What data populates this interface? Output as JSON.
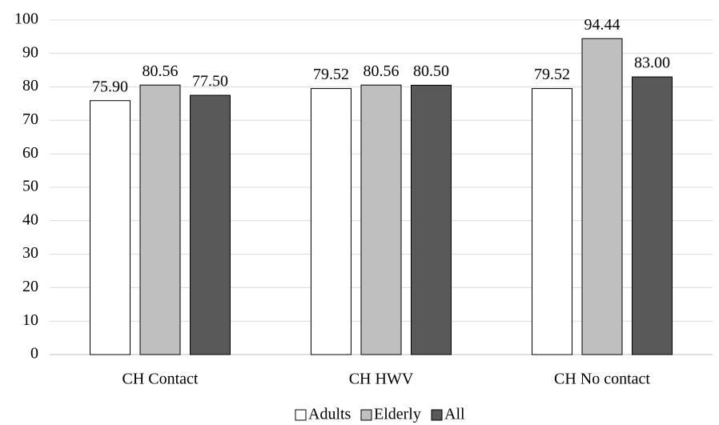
{
  "chart_data": {
    "type": "bar",
    "categories": [
      "CH Contact",
      "CH HWV",
      "CH No contact"
    ],
    "series": [
      {
        "name": "Adults",
        "color": "#ffffff",
        "values": [
          75.9,
          79.52,
          79.52
        ],
        "value_labels": [
          "75.90",
          "79.52",
          "79.52"
        ]
      },
      {
        "name": "Elderly",
        "color": "#bfbfbf",
        "values": [
          80.56,
          80.56,
          94.44
        ],
        "value_labels": [
          "80.56",
          "80.56",
          "94.44"
        ]
      },
      {
        "name": "All",
        "color": "#595959",
        "values": [
          77.5,
          80.5,
          83.0
        ],
        "value_labels": [
          "77.50",
          "80.50",
          "83.00"
        ]
      }
    ],
    "ylim": [
      0,
      100
    ],
    "yticks": [
      0,
      10,
      20,
      30,
      40,
      50,
      60,
      70,
      80,
      90,
      100
    ],
    "grid": true,
    "legend": "bottom"
  }
}
